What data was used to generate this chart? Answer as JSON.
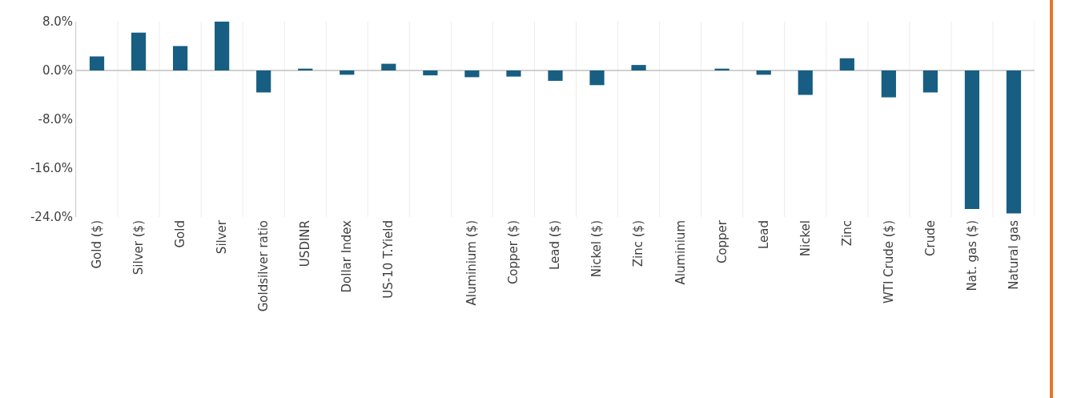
{
  "chart_data": {
    "type": "bar",
    "categories": [
      "Gold ($)",
      "Silver ($)",
      "Gold",
      "Silver",
      "Goldsilver ratio",
      "USDINR",
      "Dollar Index",
      "US-10 T.Yield",
      null,
      "Aluminium ($)",
      "Copper ($)",
      "Lead ($)",
      "Nickel ($)",
      "Zinc ($)",
      "Aluminium",
      "Copper",
      "Lead",
      "Nickel",
      "Zinc",
      "WTI Crude ($)",
      "Crude",
      "Nat. gas ($)",
      "Natural gas"
    ],
    "values": [
      2.3,
      6.2,
      4.0,
      8.0,
      -3.6,
      0.3,
      -0.7,
      1.1,
      -0.8,
      -1.1,
      -1.0,
      -1.7,
      -2.4,
      0.9,
      0.0,
      0.3,
      -0.7,
      -4.0,
      2.0,
      -4.4,
      -3.6,
      -22.7,
      -23.4
    ],
    "color": "#175e82",
    "ylim": [
      -24,
      8
    ],
    "yticks": [
      {
        "value": 8,
        "label": "8.0%"
      },
      {
        "value": 0,
        "label": "0.0%"
      },
      {
        "value": -8,
        "label": "-8.0%"
      },
      {
        "value": -16,
        "label": "-16.0%"
      },
      {
        "value": -24,
        "label": "-24.0%"
      }
    ],
    "grid": "x",
    "legend": false
  }
}
